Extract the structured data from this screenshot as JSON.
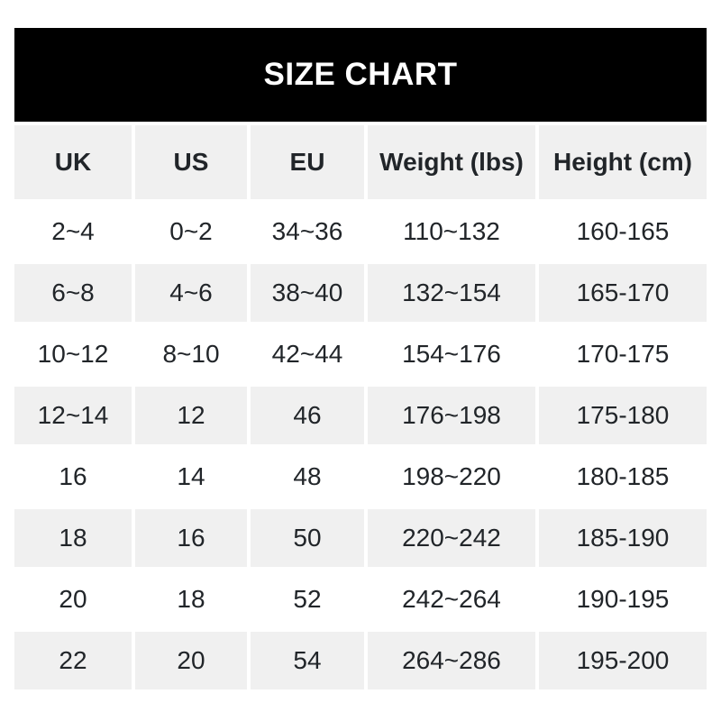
{
  "title_bar": {
    "title": "SIZE CHART"
  },
  "colors": {
    "title_bar_bg": "#000000",
    "title_text": "#ffffff",
    "cell_bg": "#ffffff",
    "cell_alt_bg": "#f0f0f0",
    "text": "#212529"
  },
  "chart_data": {
    "type": "table",
    "title": "SIZE CHART",
    "columns": [
      "UK",
      "US",
      "EU",
      "Weight (lbs)",
      "Height (cm)"
    ],
    "rows": [
      [
        "2~4",
        "0~2",
        "34~36",
        "110~132",
        "160-165"
      ],
      [
        "6~8",
        "4~6",
        "38~40",
        "132~154",
        "165-170"
      ],
      [
        "10~12",
        "8~10",
        "42~44",
        "154~176",
        "170-175"
      ],
      [
        "12~14",
        "12",
        "46",
        "176~198",
        "175-180"
      ],
      [
        "16",
        "14",
        "48",
        "198~220",
        "180-185"
      ],
      [
        "18",
        "16",
        "50",
        "220~242",
        "185-190"
      ],
      [
        "20",
        "18",
        "52",
        "242~264",
        "190-195"
      ],
      [
        "22",
        "20",
        "54",
        "264~286",
        "195-200"
      ]
    ]
  }
}
